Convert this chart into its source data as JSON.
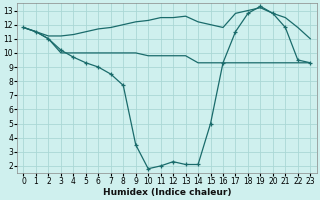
{
  "xlabel": "Humidex (Indice chaleur)",
  "background_color": "#cff0ee",
  "grid_color": "#aad8d5",
  "line_color": "#1a6b6b",
  "xlim": [
    -0.5,
    23.5
  ],
  "ylim": [
    1.5,
    13.5
  ],
  "xticks": [
    0,
    1,
    2,
    3,
    4,
    5,
    6,
    7,
    8,
    9,
    10,
    11,
    12,
    13,
    14,
    15,
    16,
    17,
    18,
    19,
    20,
    21,
    22,
    23
  ],
  "yticks": [
    2,
    3,
    4,
    5,
    6,
    7,
    8,
    9,
    10,
    11,
    12,
    13
  ],
  "line1_x": [
    0,
    1,
    2,
    3,
    4,
    5,
    6,
    7,
    8,
    9,
    10,
    11,
    12,
    13,
    14,
    15,
    16,
    17,
    18,
    19,
    20,
    21,
    22,
    23
  ],
  "line1_y": [
    11.8,
    11.5,
    11.0,
    10.2,
    9.7,
    9.3,
    9.0,
    8.5,
    7.7,
    3.5,
    1.8,
    2.0,
    2.3,
    2.1,
    2.1,
    5.0,
    9.3,
    11.5,
    12.8,
    13.3,
    12.8,
    11.8,
    9.5,
    9.3
  ],
  "line2_x": [
    0,
    1,
    2,
    3,
    4,
    5,
    6,
    7,
    8,
    9,
    10,
    11,
    12,
    13,
    14,
    15,
    16,
    17,
    18,
    19,
    20,
    21,
    22,
    23
  ],
  "line2_y": [
    11.8,
    11.5,
    11.0,
    10.0,
    10.0,
    10.0,
    10.0,
    10.0,
    10.0,
    10.0,
    9.8,
    9.8,
    9.8,
    9.8,
    9.3,
    9.3,
    9.3,
    9.3,
    9.3,
    9.3,
    9.3,
    9.3,
    9.3,
    9.3
  ],
  "line3_x": [
    0,
    1,
    2,
    3,
    4,
    5,
    6,
    7,
    8,
    9,
    10,
    11,
    12,
    13,
    14,
    15,
    16,
    17,
    18,
    19,
    20,
    21,
    22,
    23
  ],
  "line3_y": [
    11.8,
    11.5,
    11.2,
    11.2,
    11.3,
    11.5,
    11.7,
    11.8,
    12.0,
    12.2,
    12.3,
    12.5,
    12.5,
    12.6,
    12.2,
    12.0,
    11.8,
    12.8,
    13.0,
    13.2,
    12.8,
    12.5,
    11.8,
    11.0
  ]
}
